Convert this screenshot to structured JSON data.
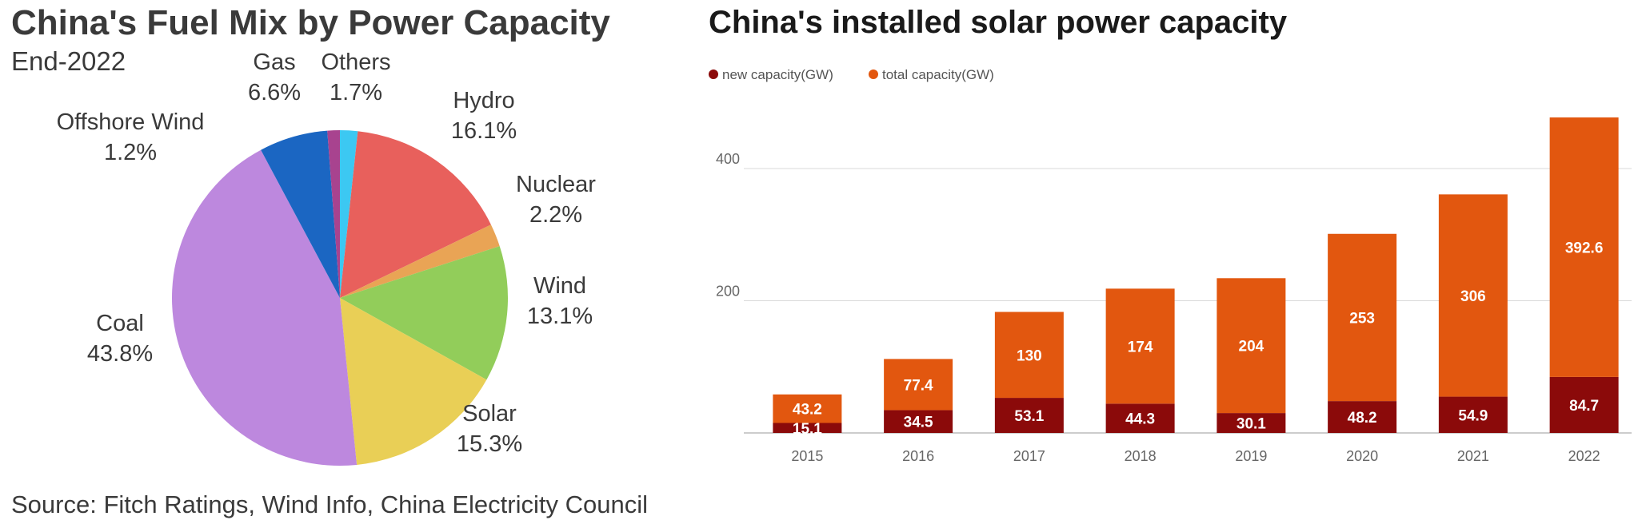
{
  "chart_data": [
    {
      "type": "pie",
      "title": "China's Fuel Mix by Power Capacity",
      "subtitle": "End-2022",
      "source": "Source: Fitch Ratings, Wind Info, China Electricity Council",
      "slices": [
        {
          "label": "Others",
          "value": 1.7,
          "value_label": "1.7%",
          "color": "#3cc8f2"
        },
        {
          "label": "Hydro",
          "value": 16.1,
          "value_label": "16.1%",
          "color": "#e8605c"
        },
        {
          "label": "Nuclear",
          "value": 2.2,
          "value_label": "2.2%",
          "color": "#e9a455"
        },
        {
          "label": "Wind",
          "value": 13.1,
          "value_label": "13.1%",
          "color": "#92cd5a"
        },
        {
          "label": "Solar",
          "value": 15.3,
          "value_label": "15.3%",
          "color": "#e9cf56"
        },
        {
          "label": "Coal",
          "value": 43.8,
          "value_label": "43.8%",
          "color": "#bd88de"
        },
        {
          "label": "Gas",
          "value": 6.6,
          "value_label": "6.6%",
          "color": "#1b66c2"
        },
        {
          "label": "Offshore Wind",
          "value": 1.2,
          "value_label": "1.2%",
          "color": "#a8438f"
        }
      ]
    },
    {
      "type": "bar",
      "stacked": true,
      "title": "China's installed solar power capacity",
      "categories": [
        "2015",
        "2016",
        "2017",
        "2018",
        "2019",
        "2020",
        "2021",
        "2022"
      ],
      "series": [
        {
          "name": "new capacity(GW)",
          "color": "#8b0a0a",
          "values": [
            15.1,
            34.5,
            53.1,
            44.3,
            30.1,
            48.2,
            54.9,
            84.7
          ]
        },
        {
          "name": "total capacity(GW)",
          "color": "#e2570f",
          "values": [
            43.2,
            77.4,
            130,
            174,
            204,
            253,
            306,
            392.6
          ]
        }
      ],
      "value_labels": {
        "new": [
          "15.1",
          "34.5",
          "53.1",
          "44.3",
          "30.1",
          "48.2",
          "54.9",
          "84.7"
        ],
        "total": [
          "43.2",
          "77.4",
          "130",
          "174",
          "204",
          "253",
          "306",
          "392.6"
        ]
      },
      "y_ticks": [
        200,
        400
      ],
      "ylim": [
        0,
        470
      ],
      "grid": true,
      "legend_position": "top-left"
    }
  ]
}
